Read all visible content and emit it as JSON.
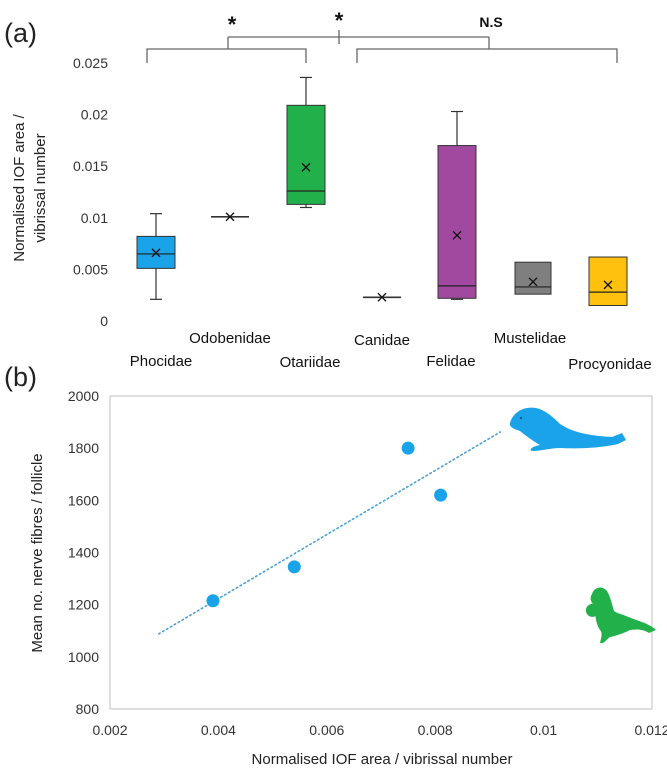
{
  "figure": {
    "panel_a_label": "(a)",
    "panel_b_label": "(b)"
  },
  "chart_data": [
    {
      "type": "box",
      "panel": "(a)",
      "ylabel_lines": [
        "Normalised IOF area /",
        "vibrissal number"
      ],
      "ylim": [
        0,
        0.025
      ],
      "yticks": [
        0,
        0.005,
        0.01,
        0.015,
        0.02,
        0.025
      ],
      "ytick_labels": [
        "0",
        "0.005",
        "0.01",
        "0.015",
        "0.02",
        "0.025"
      ],
      "grid": false,
      "categories": [
        "Phocidae",
        "Odobenidae",
        "Otariidae",
        "Canidae",
        "Felidae",
        "Mustelidae",
        "Procyonidae"
      ],
      "boxes": [
        {
          "name": "Phocidae",
          "color": "#1aa3e8",
          "min": 0.0021,
          "q1": 0.0051,
          "median": 0.0065,
          "q3": 0.0082,
          "max": 0.0104,
          "mean": 0.0066
        },
        {
          "name": "Odobenidae",
          "color": "#555555",
          "min": 0.0101,
          "q1": 0.0101,
          "median": 0.0101,
          "q3": 0.0101,
          "max": 0.0101,
          "mean": 0.0101
        },
        {
          "name": "Otariidae",
          "color": "#22b04b",
          "min": 0.011,
          "q1": 0.0113,
          "median": 0.0126,
          "q3": 0.0209,
          "max": 0.0236,
          "mean": 0.0149
        },
        {
          "name": "Canidae",
          "color": "#555555",
          "min": 0.0023,
          "q1": 0.0023,
          "median": 0.0023,
          "q3": 0.0023,
          "max": 0.0023,
          "mean": 0.0023
        },
        {
          "name": "Felidae",
          "color": "#a0499f",
          "min": 0.0021,
          "q1": 0.0022,
          "median": 0.0034,
          "q3": 0.017,
          "max": 0.0203,
          "mean": 0.0083
        },
        {
          "name": "Mustelidae",
          "color": "#7f7f7f",
          "min": 0.0026,
          "q1": 0.0026,
          "median": 0.0033,
          "q3": 0.0057,
          "max": 0.0057,
          "mean": 0.0038
        },
        {
          "name": "Procyonidae",
          "color": "#ffc10e",
          "min": 0.0015,
          "q1": 0.0015,
          "median": 0.0028,
          "q3": 0.0062,
          "max": 0.0062,
          "mean": 0.0035
        }
      ],
      "significance": [
        "*",
        "*",
        "N.S"
      ]
    },
    {
      "type": "scatter",
      "panel": "(b)",
      "xlabel": "Normalised IOF area / vibrissal number",
      "ylabel": "Mean no. nerve fibres / follicle",
      "xlim": [
        0.002,
        0.012
      ],
      "ylim": [
        800,
        2000
      ],
      "xticks": [
        0.002,
        0.004,
        0.006,
        0.008,
        0.01,
        0.012
      ],
      "xtick_labels": [
        "0.002",
        "0.004",
        "0.006",
        "0.008",
        "0.01",
        "0.012"
      ],
      "yticks": [
        800,
        1000,
        1200,
        1400,
        1600,
        1800,
        2000
      ],
      "ytick_labels": [
        "800",
        "1000",
        "1200",
        "1400",
        "1600",
        "1800",
        "2000"
      ],
      "grid": false,
      "series": [
        {
          "color": "#1aa3e8",
          "points": [
            [
              0.0039,
              1215
            ],
            [
              0.0054,
              1345
            ],
            [
              0.0075,
              1800
            ],
            [
              0.0081,
              1620
            ]
          ]
        },
        {
          "color": "#22b04b",
          "points": [
            [
              0.0109,
              1178
            ]
          ]
        }
      ],
      "trendline": {
        "color": "#4a9fd8",
        "style": "dotted",
        "x": [
          0.0029,
          0.0092
        ],
        "y": [
          1088,
          1862
        ]
      }
    }
  ]
}
